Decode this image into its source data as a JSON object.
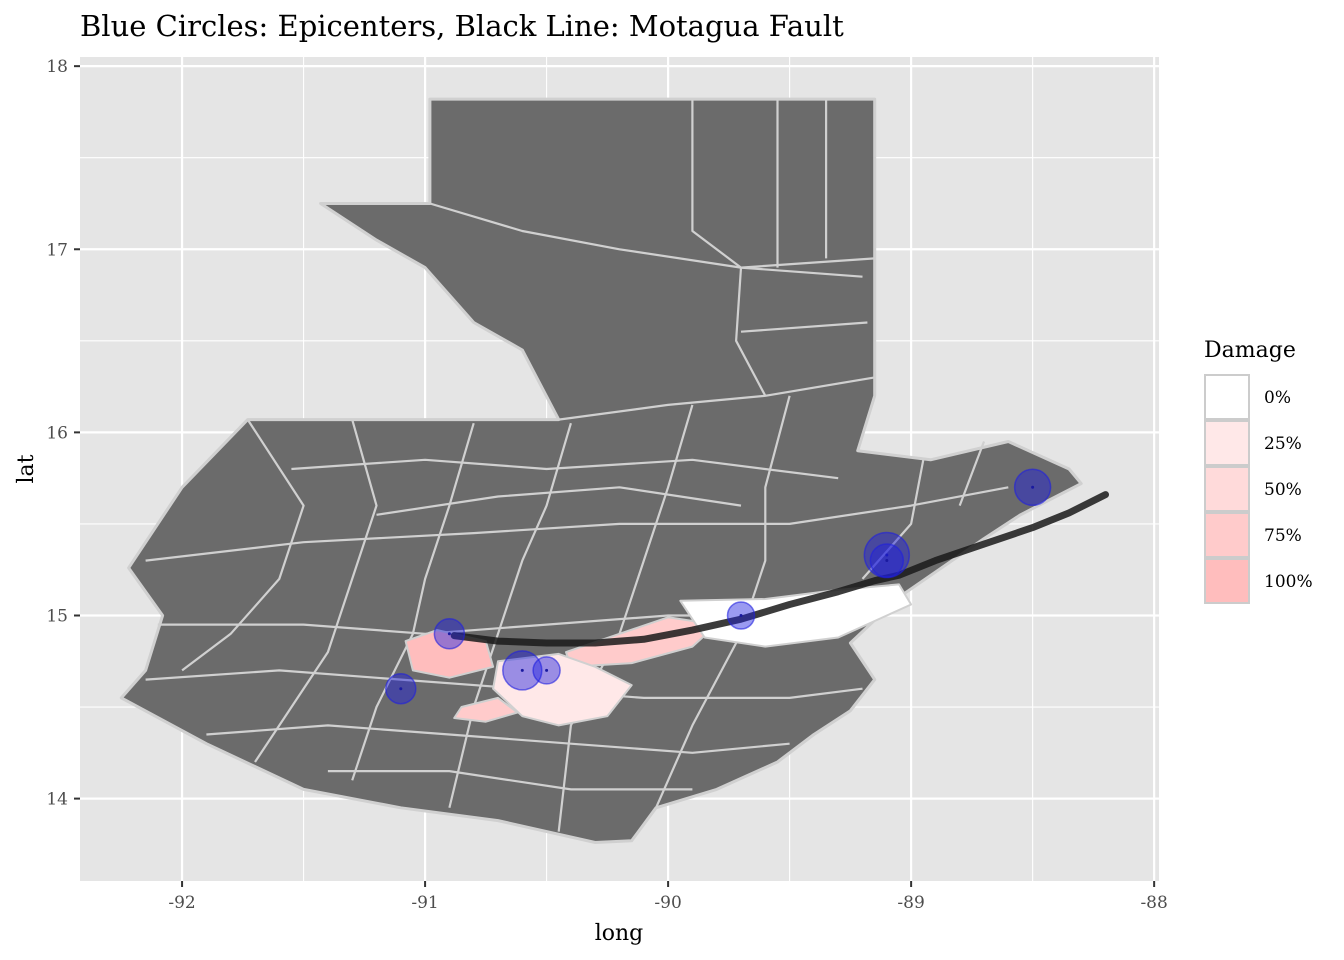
{
  "chart_data": {
    "type": "map",
    "title": "Blue Circles: Epicenters, Black Line: Motagua Fault",
    "xlabel": "long",
    "ylabel": "lat",
    "xlim": [
      -92.42,
      -87.98
    ],
    "ylim": [
      13.55,
      18.05
    ],
    "x_ticks": [
      -92,
      -91,
      -90,
      -89,
      -88
    ],
    "x_tick_labels": [
      "-92",
      "-91",
      "-90",
      "-89",
      "-88"
    ],
    "y_ticks": [
      14,
      15,
      16,
      17,
      18
    ],
    "y_tick_labels": [
      "14",
      "15",
      "16",
      "17",
      "18"
    ],
    "grid": true,
    "panel_background": "#e5e5e5",
    "region_fill": "#6b6b6b",
    "border_color": "#d0d0d0",
    "legend": {
      "title": "Damage",
      "placement": "right",
      "items": [
        {
          "label": "0%",
          "color": "#ffffff"
        },
        {
          "label": "25%",
          "color": "#ffe8e8"
        },
        {
          "label": "50%",
          "color": "#ffdada"
        },
        {
          "label": "75%",
          "color": "#ffcbcb"
        },
        {
          "label": "100%",
          "color": "#ffbdbd"
        }
      ]
    },
    "epicenters": {
      "color": "#2020e0",
      "points": [
        {
          "long": -91.1,
          "lat": 14.6,
          "size": 1.0
        },
        {
          "long": -90.9,
          "lat": 14.9,
          "size": 1.0
        },
        {
          "long": -90.6,
          "lat": 14.7,
          "size": 1.3
        },
        {
          "long": -90.5,
          "lat": 14.7,
          "size": 0.9
        },
        {
          "long": -89.7,
          "lat": 15.0,
          "size": 0.9
        },
        {
          "long": -89.1,
          "lat": 15.33,
          "size": 1.5
        },
        {
          "long": -89.1,
          "lat": 15.3,
          "size": 1.1
        },
        {
          "long": -88.5,
          "lat": 15.7,
          "size": 1.2
        }
      ]
    },
    "fault_line": {
      "color": "#1a1a1a",
      "points": [
        [
          -90.88,
          14.89
        ],
        [
          -90.7,
          14.86
        ],
        [
          -90.5,
          14.85
        ],
        [
          -90.3,
          14.85
        ],
        [
          -90.1,
          14.87
        ],
        [
          -89.9,
          14.92
        ],
        [
          -89.7,
          14.98
        ],
        [
          -89.5,
          15.06
        ],
        [
          -89.3,
          15.13
        ],
        [
          -89.15,
          15.19
        ],
        [
          -89.05,
          15.22
        ],
        [
          -88.9,
          15.3
        ],
        [
          -88.7,
          15.39
        ],
        [
          -88.5,
          15.48
        ],
        [
          -88.35,
          15.56
        ],
        [
          -88.2,
          15.66
        ]
      ]
    },
    "damage_regions": [
      {
        "level": "100%",
        "outline": [
          [
            -91.08,
            14.86
          ],
          [
            -90.95,
            14.92
          ],
          [
            -90.75,
            14.86
          ],
          [
            -90.72,
            14.72
          ],
          [
            -90.9,
            14.66
          ],
          [
            -91.05,
            14.7
          ]
        ]
      },
      {
        "level": "75%",
        "outline": [
          [
            -90.42,
            14.8
          ],
          [
            -90.2,
            14.9
          ],
          [
            -90.0,
            14.99
          ],
          [
            -89.8,
            14.95
          ],
          [
            -89.9,
            14.83
          ],
          [
            -90.15,
            14.74
          ],
          [
            -90.4,
            14.72
          ]
        ]
      },
      {
        "level": "25%",
        "outline": [
          [
            -90.7,
            14.75
          ],
          [
            -90.45,
            14.79
          ],
          [
            -90.3,
            14.72
          ],
          [
            -90.15,
            14.62
          ],
          [
            -90.25,
            14.45
          ],
          [
            -90.45,
            14.4
          ],
          [
            -90.6,
            14.45
          ],
          [
            -90.72,
            14.6
          ]
        ]
      },
      {
        "level": "75%",
        "outline": [
          [
            -90.85,
            14.5
          ],
          [
            -90.7,
            14.55
          ],
          [
            -90.62,
            14.47
          ],
          [
            -90.75,
            14.42
          ],
          [
            -90.88,
            14.44
          ]
        ]
      },
      {
        "level": "0%",
        "outline": [
          [
            -89.95,
            15.08
          ],
          [
            -89.6,
            15.09
          ],
          [
            -89.3,
            15.14
          ],
          [
            -89.05,
            15.17
          ],
          [
            -89.0,
            15.06
          ],
          [
            -89.3,
            14.88
          ],
          [
            -89.6,
            14.83
          ],
          [
            -89.85,
            14.88
          ]
        ]
      }
    ]
  }
}
